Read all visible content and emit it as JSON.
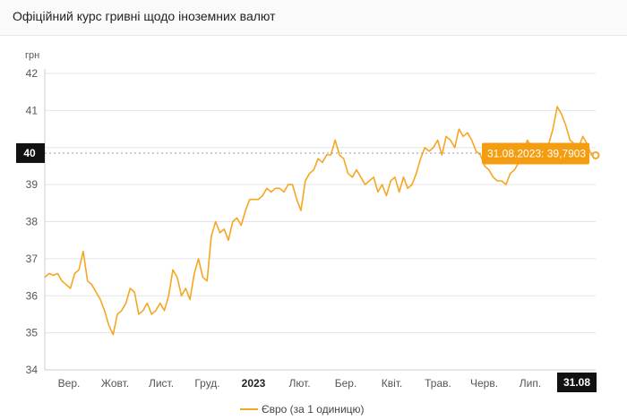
{
  "title": "Офіційний курс гривні щодо іноземних валют",
  "chart_data": {
    "type": "line",
    "title": "Офіційний курс гривні щодо іноземних валют",
    "ylabel": "грн",
    "ylim": [
      34,
      42
    ],
    "yticks": [
      34,
      35,
      36,
      37,
      38,
      39,
      40,
      41,
      42
    ],
    "grid": true,
    "legend_position": "bottom",
    "color": "#f5a623",
    "xticks": [
      {
        "label": "Вер.",
        "bold": false
      },
      {
        "label": "Жовт.",
        "bold": false
      },
      {
        "label": "Лист.",
        "bold": false
      },
      {
        "label": "Груд.",
        "bold": false
      },
      {
        "label": "2023",
        "bold": true
      },
      {
        "label": "Лют.",
        "bold": false
      },
      {
        "label": "Бер.",
        "bold": false
      },
      {
        "label": "Квіт.",
        "bold": false
      },
      {
        "label": "Трав.",
        "bold": false
      },
      {
        "label": "Черв.",
        "bold": false
      },
      {
        "label": "Лип.",
        "bold": false
      }
    ],
    "end_label": "31.08",
    "y_crosshair_label": "40",
    "tooltip": "31.08.2023: 39,7903",
    "series": [
      {
        "name": "Євро (за 1 одиницю)",
        "values": [
          36.5,
          36.6,
          36.55,
          36.6,
          36.4,
          36.3,
          36.2,
          36.6,
          36.7,
          37.2,
          36.4,
          36.3,
          36.1,
          35.9,
          35.6,
          35.2,
          34.95,
          35.5,
          35.6,
          35.8,
          36.2,
          36.1,
          35.5,
          35.6,
          35.8,
          35.5,
          35.6,
          35.8,
          35.6,
          36.0,
          36.7,
          36.5,
          36.0,
          36.2,
          35.9,
          36.6,
          37.0,
          36.5,
          36.4,
          37.6,
          38.0,
          37.7,
          37.8,
          37.5,
          38.0,
          38.1,
          37.9,
          38.3,
          38.6,
          38.6,
          38.6,
          38.7,
          38.9,
          38.8,
          38.9,
          38.9,
          38.8,
          39.0,
          39.0,
          38.6,
          38.3,
          39.1,
          39.3,
          39.4,
          39.7,
          39.6,
          39.8,
          39.8,
          40.2,
          39.8,
          39.7,
          39.3,
          39.2,
          39.4,
          39.2,
          39.0,
          39.1,
          39.2,
          38.8,
          39.0,
          38.7,
          39.1,
          39.2,
          38.8,
          39.2,
          38.9,
          39.0,
          39.3,
          39.7,
          40.0,
          39.9,
          40.0,
          40.2,
          39.8,
          40.3,
          40.2,
          40.0,
          40.5,
          40.3,
          40.4,
          40.2,
          39.9,
          39.8,
          39.5,
          39.4,
          39.2,
          39.1,
          39.1,
          39.0,
          39.3,
          39.4,
          39.6,
          39.8,
          40.2,
          40.0,
          39.9,
          39.8,
          40.1,
          40.1,
          40.5,
          41.1,
          40.9,
          40.6,
          40.2,
          40.1,
          40.0,
          40.3,
          40.1,
          39.8,
          39.79
        ]
      }
    ]
  }
}
